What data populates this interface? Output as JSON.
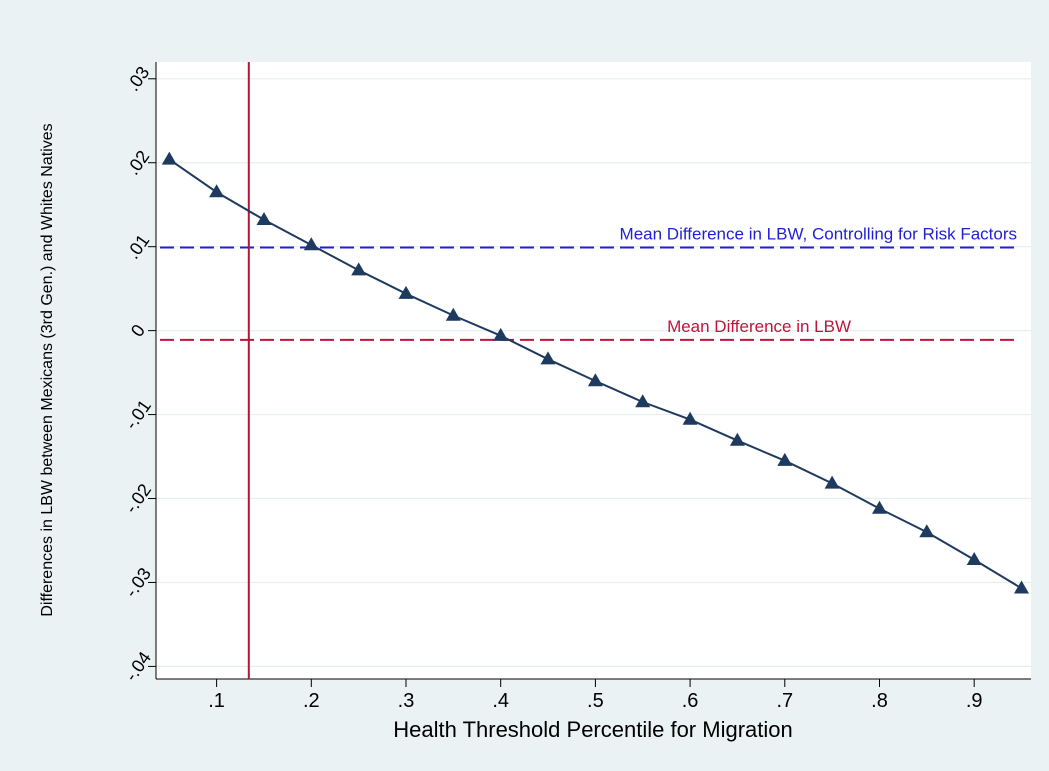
{
  "chart_data": {
    "type": "line",
    "title": "",
    "xlabel": "Health Threshold Percentile for Migration",
    "ylabel": "Differences in LBW between Mexicans (3rd Gen.) and Whites Natives",
    "xlim": [
      0.036,
      0.96
    ],
    "ylim": [
      -0.0415,
      0.032
    ],
    "x_ticks": [
      0.1,
      0.2,
      0.3,
      0.4,
      0.5,
      0.6,
      0.7,
      0.8,
      0.9
    ],
    "x_tick_labels": [
      ".1",
      ".2",
      ".3",
      ".4",
      ".5",
      ".6",
      ".7",
      ".8",
      ".9"
    ],
    "y_ticks": [
      -0.04,
      -0.03,
      -0.02,
      -0.01,
      0,
      0.01,
      0.02,
      0.03
    ],
    "y_tick_labels": [
      "-.04",
      "-.03",
      "-.02",
      "-.01",
      "0",
      ".01",
      ".02",
      ".03"
    ],
    "grid": "horizontal",
    "legend": "none",
    "series": [
      {
        "marker": "triangle",
        "color": "#1f3a5f",
        "x": [
          0.05,
          0.1,
          0.15,
          0.2,
          0.25,
          0.3,
          0.35,
          0.4,
          0.45,
          0.5,
          0.55,
          0.6,
          0.65,
          0.7,
          0.75,
          0.8,
          0.85,
          0.9,
          0.95
        ],
        "y": [
          0.0204,
          0.0165,
          0.0132,
          0.0102,
          0.0072,
          0.0044,
          0.0018,
          -0.0006,
          -0.0034,
          -0.006,
          -0.0085,
          -0.0106,
          -0.0131,
          -0.0155,
          -0.0182,
          -0.0212,
          -0.024,
          -0.0273,
          -0.0307
        ]
      }
    ],
    "reference_lines": [
      {
        "orientation": "horizontal",
        "value": 0.0099,
        "style": "dashed",
        "color": "#1f1fd6",
        "label": "Mean Difference in LBW, Controlling for Risk Factors"
      },
      {
        "orientation": "horizontal",
        "value": -0.0011,
        "style": "dashed",
        "color": "#c0143c",
        "label": "Mean Difference in LBW"
      },
      {
        "orientation": "vertical",
        "value": 0.134,
        "style": "solid",
        "color": "#b01835",
        "label": ""
      }
    ]
  }
}
